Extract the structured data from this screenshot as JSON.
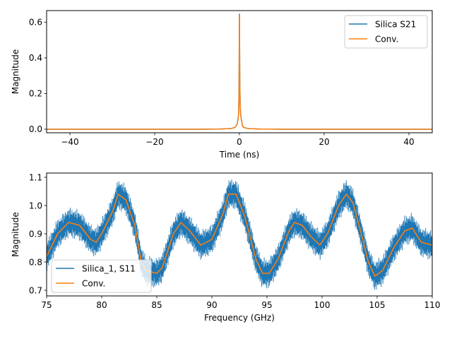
{
  "chart_data": [
    {
      "type": "line",
      "title": "",
      "xlabel": "Time (ns)",
      "ylabel": "Magnitude",
      "xlim": [
        -45.5,
        45.5
      ],
      "ylim": [
        -0.02,
        0.665
      ],
      "xticks": [
        -40,
        -20,
        0,
        20,
        40
      ],
      "xtick_labels": [
        "−40",
        "−20",
        "0",
        "20",
        "40"
      ],
      "yticks": [
        0.0,
        0.2,
        0.4,
        0.6
      ],
      "ytick_labels": [
        "0.0",
        "0.2",
        "0.4",
        "0.6"
      ],
      "grid": false,
      "legend_position": "upper-right",
      "series": [
        {
          "name": "Silica S21",
          "color": "#1f77b4",
          "points": [
            [
              -45.5,
              0.0
            ],
            [
              -10,
              0.0
            ],
            [
              -5,
              0.001
            ],
            [
              -2,
              0.004
            ],
            [
              -1,
              0.01
            ],
            [
              -0.5,
              0.03
            ],
            [
              -0.2,
              0.08
            ],
            [
              -0.1,
              0.2
            ],
            [
              0,
              0.645
            ],
            [
              0.1,
              0.25
            ],
            [
              0.2,
              0.12
            ],
            [
              0.35,
              0.07
            ],
            [
              0.5,
              0.05
            ],
            [
              0.7,
              0.02
            ],
            [
              1,
              0.01
            ],
            [
              2,
              0.004
            ],
            [
              5,
              0.001
            ],
            [
              10,
              0.0
            ],
            [
              45.5,
              0.0
            ]
          ]
        },
        {
          "name": "Conv.",
          "color": "#ff7f0e",
          "points": [
            [
              -45.5,
              0.0
            ],
            [
              -10,
              0.0
            ],
            [
              -5,
              0.001
            ],
            [
              -2,
              0.004
            ],
            [
              -1,
              0.01
            ],
            [
              -0.5,
              0.03
            ],
            [
              -0.2,
              0.08
            ],
            [
              -0.1,
              0.2
            ],
            [
              0,
              0.64
            ],
            [
              0.1,
              0.25
            ],
            [
              0.2,
              0.12
            ],
            [
              0.35,
              0.07
            ],
            [
              0.5,
              0.05
            ],
            [
              0.7,
              0.02
            ],
            [
              1,
              0.01
            ],
            [
              2,
              0.004
            ],
            [
              5,
              0.001
            ],
            [
              10,
              0.0
            ],
            [
              45.5,
              0.0
            ]
          ]
        }
      ]
    },
    {
      "type": "line",
      "title": "",
      "xlabel": "Frequency (GHz)",
      "ylabel": "Magnitude",
      "xlim": [
        75,
        110
      ],
      "ylim": [
        0.68,
        1.115
      ],
      "xticks": [
        75,
        80,
        85,
        90,
        95,
        100,
        105,
        110
      ],
      "xtick_labels": [
        "75",
        "80",
        "85",
        "90",
        "95",
        "100",
        "105",
        "110"
      ],
      "yticks": [
        0.7,
        0.8,
        0.9,
        1.0,
        1.1
      ],
      "ytick_labels": [
        "0.7",
        "0.8",
        "0.9",
        "1.0",
        "1.1"
      ],
      "grid": false,
      "legend_position": "lower-left",
      "noise_band_amplitude": 0.055,
      "series": [
        {
          "name": "Silica_1, S11",
          "color": "#1f77b4",
          "points": [
            [
              75,
              0.82
            ],
            [
              76,
              0.9
            ],
            [
              77,
              0.94
            ],
            [
              78,
              0.93
            ],
            [
              79,
              0.88
            ],
            [
              79.5,
              0.87
            ],
            [
              80,
              0.9
            ],
            [
              81,
              0.98
            ],
            [
              81.5,
              1.04
            ],
            [
              82.2,
              1.02
            ],
            [
              83,
              0.93
            ],
            [
              83.6,
              0.8
            ],
            [
              84,
              0.77
            ],
            [
              85,
              0.76
            ],
            [
              85.5,
              0.78
            ],
            [
              86.5,
              0.9
            ],
            [
              87.2,
              0.94
            ],
            [
              88,
              0.91
            ],
            [
              89,
              0.86
            ],
            [
              90,
              0.88
            ],
            [
              91,
              0.97
            ],
            [
              91.5,
              1.04
            ],
            [
              92.2,
              1.04
            ],
            [
              93,
              0.96
            ],
            [
              94,
              0.81
            ],
            [
              94.6,
              0.76
            ],
            [
              95.2,
              0.76
            ],
            [
              96,
              0.81
            ],
            [
              97,
              0.91
            ],
            [
              97.5,
              0.94
            ],
            [
              98.2,
              0.93
            ],
            [
              99,
              0.89
            ],
            [
              99.8,
              0.86
            ],
            [
              100.5,
              0.9
            ],
            [
              101.5,
              1.0
            ],
            [
              102.2,
              1.04
            ],
            [
              102.8,
              1.01
            ],
            [
              103.5,
              0.91
            ],
            [
              104.2,
              0.8
            ],
            [
              104.8,
              0.75
            ],
            [
              105.5,
              0.77
            ],
            [
              106.5,
              0.85
            ],
            [
              107.5,
              0.91
            ],
            [
              108.2,
              0.92
            ],
            [
              109,
              0.87
            ],
            [
              110,
              0.86
            ]
          ]
        },
        {
          "name": "Conv.",
          "color": "#ff7f0e",
          "points": [
            [
              75,
              0.82
            ],
            [
              76,
              0.9
            ],
            [
              77,
              0.94
            ],
            [
              78,
              0.93
            ],
            [
              79,
              0.88
            ],
            [
              79.5,
              0.87
            ],
            [
              80,
              0.9
            ],
            [
              81,
              0.98
            ],
            [
              81.5,
              1.04
            ],
            [
              82.2,
              1.02
            ],
            [
              83,
              0.93
            ],
            [
              83.6,
              0.8
            ],
            [
              84,
              0.77
            ],
            [
              85,
              0.76
            ],
            [
              85.5,
              0.78
            ],
            [
              86.5,
              0.9
            ],
            [
              87.2,
              0.94
            ],
            [
              88,
              0.91
            ],
            [
              89,
              0.86
            ],
            [
              90,
              0.88
            ],
            [
              91,
              0.97
            ],
            [
              91.5,
              1.04
            ],
            [
              92.2,
              1.04
            ],
            [
              93,
              0.96
            ],
            [
              94,
              0.81
            ],
            [
              94.6,
              0.76
            ],
            [
              95.2,
              0.76
            ],
            [
              96,
              0.81
            ],
            [
              97,
              0.91
            ],
            [
              97.5,
              0.94
            ],
            [
              98.2,
              0.93
            ],
            [
              99,
              0.89
            ],
            [
              99.8,
              0.86
            ],
            [
              100.5,
              0.9
            ],
            [
              101.5,
              1.0
            ],
            [
              102.2,
              1.04
            ],
            [
              102.8,
              1.01
            ],
            [
              103.5,
              0.91
            ],
            [
              104.2,
              0.8
            ],
            [
              104.8,
              0.75
            ],
            [
              105.5,
              0.77
            ],
            [
              106.5,
              0.85
            ],
            [
              107.5,
              0.91
            ],
            [
              108.2,
              0.92
            ],
            [
              109,
              0.87
            ],
            [
              110,
              0.86
            ]
          ]
        }
      ]
    }
  ]
}
